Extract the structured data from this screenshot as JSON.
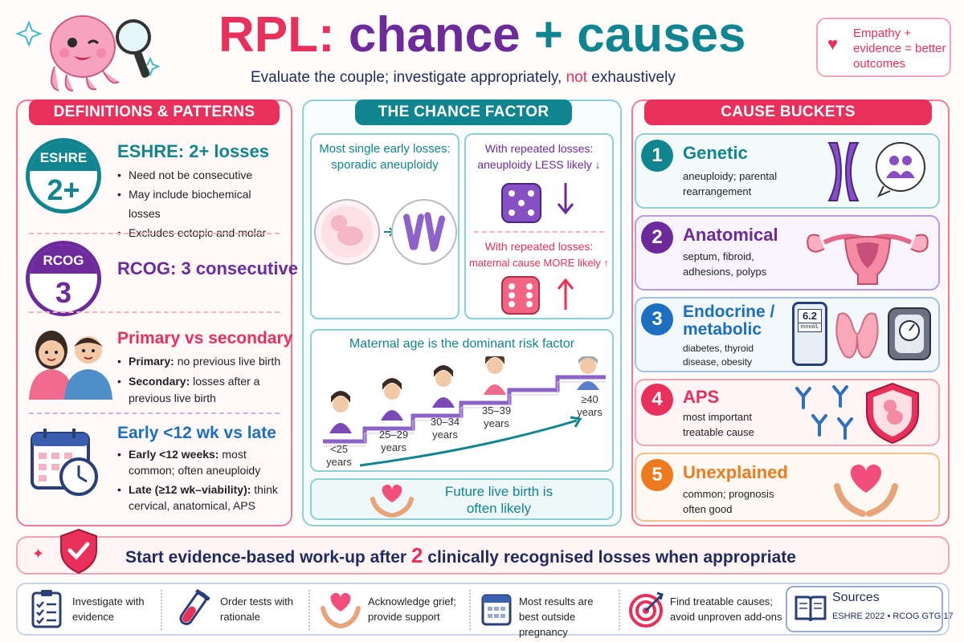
{
  "header": {
    "title_prefix": "RPL:",
    "title_mid": "chance",
    "title_plus": "+",
    "title_suffix": "causes",
    "subtitle_start": "Evaluate the couple; investigate appropriately,",
    "subtitle_not": "not",
    "subtitle_end": "exhaustively",
    "empathy_note": "Empathy + evidence = better outcomes"
  },
  "definitions": {
    "heading": "DEFINITIONS & PATTERNS",
    "eshre": {
      "badge_label": "ESHRE",
      "badge_value": "2+",
      "title": "ESHRE: 2+ losses",
      "bullets": [
        "Need not be consecutive",
        "May include biochemical losses",
        "Excludes ectopic and molar"
      ]
    },
    "rcog": {
      "badge_label": "RCOG",
      "badge_value": "3",
      "title": "RCOG: 3 consecutive"
    },
    "primary": {
      "title": "Primary vs secondary",
      "b1_bold": "Primary:",
      "b1_rest": " no previous live birth",
      "b2_bold": "Secondary:",
      "b2_rest": " losses after a previous live birth"
    },
    "early": {
      "title": "Early <12 wk vs late",
      "b1_bold": "Early <12 weeks:",
      "b1_rest": " most common; often aneuploidy",
      "b2_bold": "Late (≥12 wk–viability):",
      "b2_rest": " think cervical, anatomical, APS"
    }
  },
  "chance": {
    "heading": "THE CHANCE FACTOR",
    "single_loss": "Most single early losses: sporadic aneuploidy",
    "repeat_less_1": "With repeated losses:",
    "repeat_less_2": "aneuploidy LESS likely ↓",
    "repeat_more_1": "With repeated losses:",
    "repeat_more_2": "maternal cause MORE likely ↑",
    "age_title": "Maternal age is the dominant risk factor",
    "age_groups": [
      "<25 years",
      "25–29 years",
      "30–34 years",
      "35–39 years",
      "≥40 years"
    ],
    "future": "Future live birth is often likely"
  },
  "causes": {
    "heading": "CAUSE BUCKETS",
    "items": [
      {
        "num": "1",
        "title": "Genetic",
        "desc": "aneuploidy; parental rearrangement"
      },
      {
        "num": "2",
        "title": "Anatomical",
        "desc": "septum, fibroid, adhesions, polyps"
      },
      {
        "num": "3",
        "title": "Endocrine / metabolic",
        "desc": "diabetes, thyroid disease, obesity"
      },
      {
        "num": "4",
        "title": "APS",
        "desc": "most important treatable cause"
      },
      {
        "num": "5",
        "title": "Unexplained",
        "desc": "common; prognosis often good"
      }
    ],
    "glucose_reading": "6.2",
    "glucose_unit": "mmol/L"
  },
  "banner": {
    "text_start": "Start evidence-based work-up after",
    "number": "2",
    "text_end": "clinically recognised losses when appropriate"
  },
  "footer": {
    "items": [
      "Investigate with evidence",
      "Order tests with rationale",
      "Acknowledge grief; provide support",
      "Most results are best outside pregnancy",
      "Find treatable causes; avoid unproven add-ons"
    ],
    "sources_title": "Sources",
    "sources_text": "ESHRE 2022 • RCOG GTG 17"
  },
  "colors": {
    "pink": "#e8305a",
    "purple": "#6c2a9a",
    "teal": "#10858f",
    "blue": "#1c6fbf",
    "orange": "#ee7a1f",
    "navy": "#1f2a5e"
  }
}
